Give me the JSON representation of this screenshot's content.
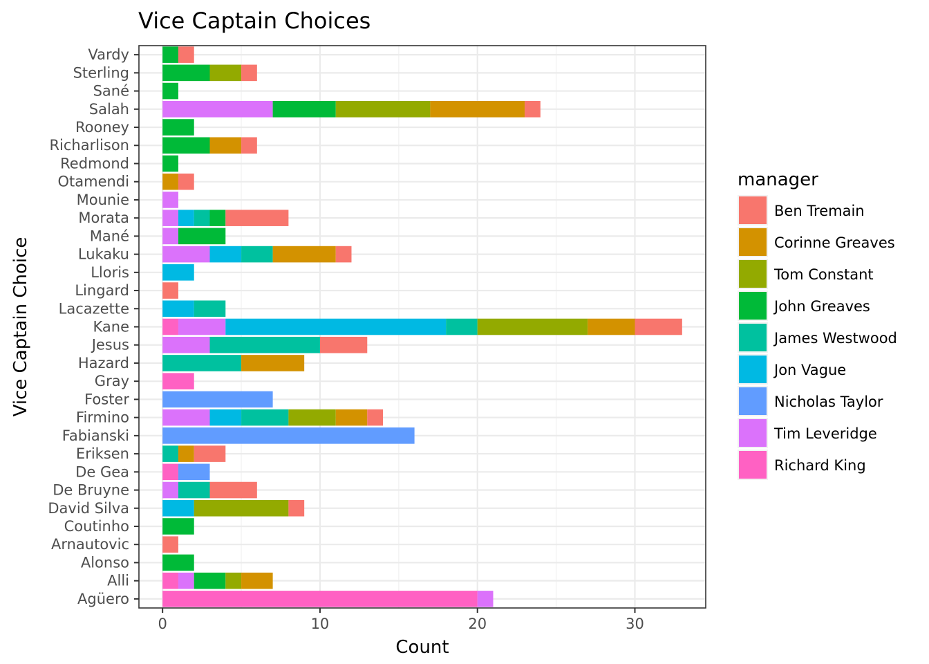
{
  "chart_data": {
    "type": "bar",
    "orientation": "horizontal",
    "stacked": true,
    "title": "Vice Captain Choices",
    "xlabel": "Count",
    "ylabel": "Vice Captain Choice",
    "xlim": [
      -1.5,
      34.5
    ],
    "x_ticks": [
      0,
      10,
      20,
      30
    ],
    "grid": true,
    "legend_title": "manager",
    "legend_position": "right",
    "categories": [
      "Vardy",
      "Sterling",
      "Sané",
      "Salah",
      "Rooney",
      "Richarlison",
      "Redmond",
      "Otamendi",
      "Mounie",
      "Morata",
      "Mané",
      "Lukaku",
      "Lloris",
      "Lingard",
      "Lacazette",
      "Kane",
      "Jesus",
      "Hazard",
      "Gray",
      "Foster",
      "Firmino",
      "Fabianski",
      "Eriksen",
      "De Gea",
      "De Bruyne",
      "David Silva",
      "Coutinho",
      "Arnautovic",
      "Alonso",
      "Alli",
      "Agüero"
    ],
    "series": [
      {
        "name": "Ben Tremain",
        "color": "#F8766D",
        "values": [
          1,
          1,
          0,
          1,
          0,
          1,
          0,
          1,
          0,
          4,
          0,
          1,
          0,
          1,
          0,
          3,
          3,
          0,
          0,
          0,
          1,
          0,
          2,
          0,
          3,
          1,
          0,
          1,
          0,
          0,
          0
        ]
      },
      {
        "name": "Corinne Greaves",
        "color": "#D39200",
        "values": [
          0,
          0,
          0,
          6,
          0,
          2,
          0,
          1,
          0,
          0,
          0,
          4,
          0,
          0,
          0,
          3,
          0,
          4,
          0,
          0,
          2,
          0,
          1,
          0,
          0,
          0,
          0,
          0,
          0,
          2,
          0
        ]
      },
      {
        "name": "Tom Constant",
        "color": "#93AA00",
        "values": [
          0,
          2,
          0,
          6,
          0,
          0,
          0,
          0,
          0,
          0,
          0,
          0,
          0,
          0,
          0,
          7,
          0,
          0,
          0,
          0,
          3,
          0,
          0,
          0,
          0,
          6,
          0,
          0,
          0,
          1,
          0
        ]
      },
      {
        "name": "John Greaves",
        "color": "#00BA38",
        "values": [
          1,
          3,
          1,
          4,
          2,
          3,
          1,
          0,
          0,
          1,
          3,
          0,
          0,
          0,
          0,
          0,
          0,
          0,
          0,
          0,
          0,
          0,
          0,
          0,
          0,
          0,
          2,
          0,
          2,
          2,
          0
        ]
      },
      {
        "name": "James Westwood",
        "color": "#00C19F",
        "values": [
          0,
          0,
          0,
          0,
          0,
          0,
          0,
          0,
          0,
          1,
          0,
          2,
          0,
          0,
          2,
          2,
          7,
          5,
          0,
          0,
          3,
          0,
          1,
          0,
          2,
          0,
          0,
          0,
          0,
          0,
          0
        ]
      },
      {
        "name": "Jon Vague",
        "color": "#00B9E3",
        "values": [
          0,
          0,
          0,
          0,
          0,
          0,
          0,
          0,
          0,
          1,
          0,
          2,
          2,
          0,
          2,
          14,
          0,
          0,
          0,
          0,
          2,
          0,
          0,
          0,
          0,
          2,
          0,
          0,
          0,
          0,
          0
        ]
      },
      {
        "name": "Nicholas Taylor",
        "color": "#619CFF",
        "values": [
          0,
          0,
          0,
          0,
          0,
          0,
          0,
          0,
          0,
          0,
          0,
          0,
          0,
          0,
          0,
          0,
          0,
          0,
          0,
          7,
          0,
          16,
          0,
          2,
          0,
          0,
          0,
          0,
          0,
          0,
          0
        ]
      },
      {
        "name": "Tim Leveridge",
        "color": "#DB72FB",
        "values": [
          0,
          0,
          0,
          7,
          0,
          0,
          0,
          0,
          1,
          1,
          1,
          3,
          0,
          0,
          0,
          3,
          3,
          0,
          0,
          0,
          3,
          0,
          0,
          0,
          1,
          0,
          0,
          0,
          0,
          1,
          1
        ]
      },
      {
        "name": "Richard King",
        "color": "#FF61C3",
        "values": [
          0,
          0,
          0,
          0,
          0,
          0,
          0,
          0,
          0,
          0,
          0,
          0,
          0,
          0,
          0,
          1,
          0,
          0,
          2,
          0,
          0,
          0,
          0,
          1,
          0,
          0,
          0,
          0,
          0,
          1,
          20
        ]
      }
    ]
  }
}
